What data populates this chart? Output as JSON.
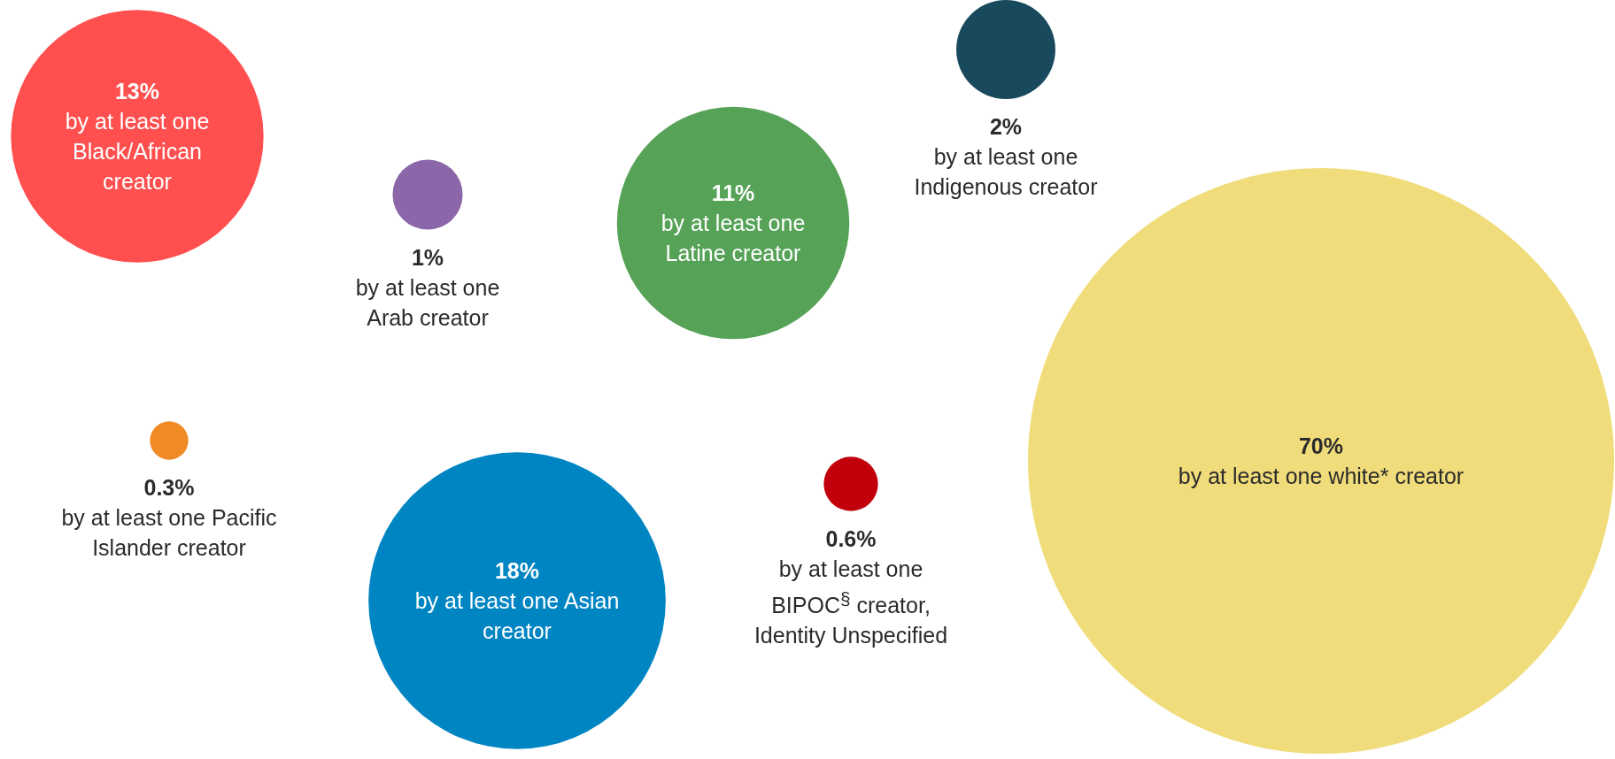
{
  "chart_data": {
    "type": "other",
    "categories": [
      "by at least one Black/African creator",
      "by at least one Arab creator",
      "by at least one Latine creator",
      "by at least one Indigenous creator",
      "by at least one white* creator",
      "by at least one Pacific Islander creator",
      "by at least one Asian creator",
      "by at least one BIPOC$^{§}$ creator, Identity Unspecified"
    ],
    "values": [
      13,
      1,
      11,
      2,
      70,
      0.3,
      18,
      0.6
    ],
    "value_labels": [
      "13%",
      "1%",
      "11%",
      "2%",
      "70%",
      "0.3%",
      "18%",
      "0.6%"
    ],
    "colors": [
      "#ff4f4f",
      "#8b66a8",
      "#56a257",
      "#18495c",
      "#f0dc7a",
      "#f08a24",
      "#0085c3",
      "#c2000c"
    ]
  }
}
